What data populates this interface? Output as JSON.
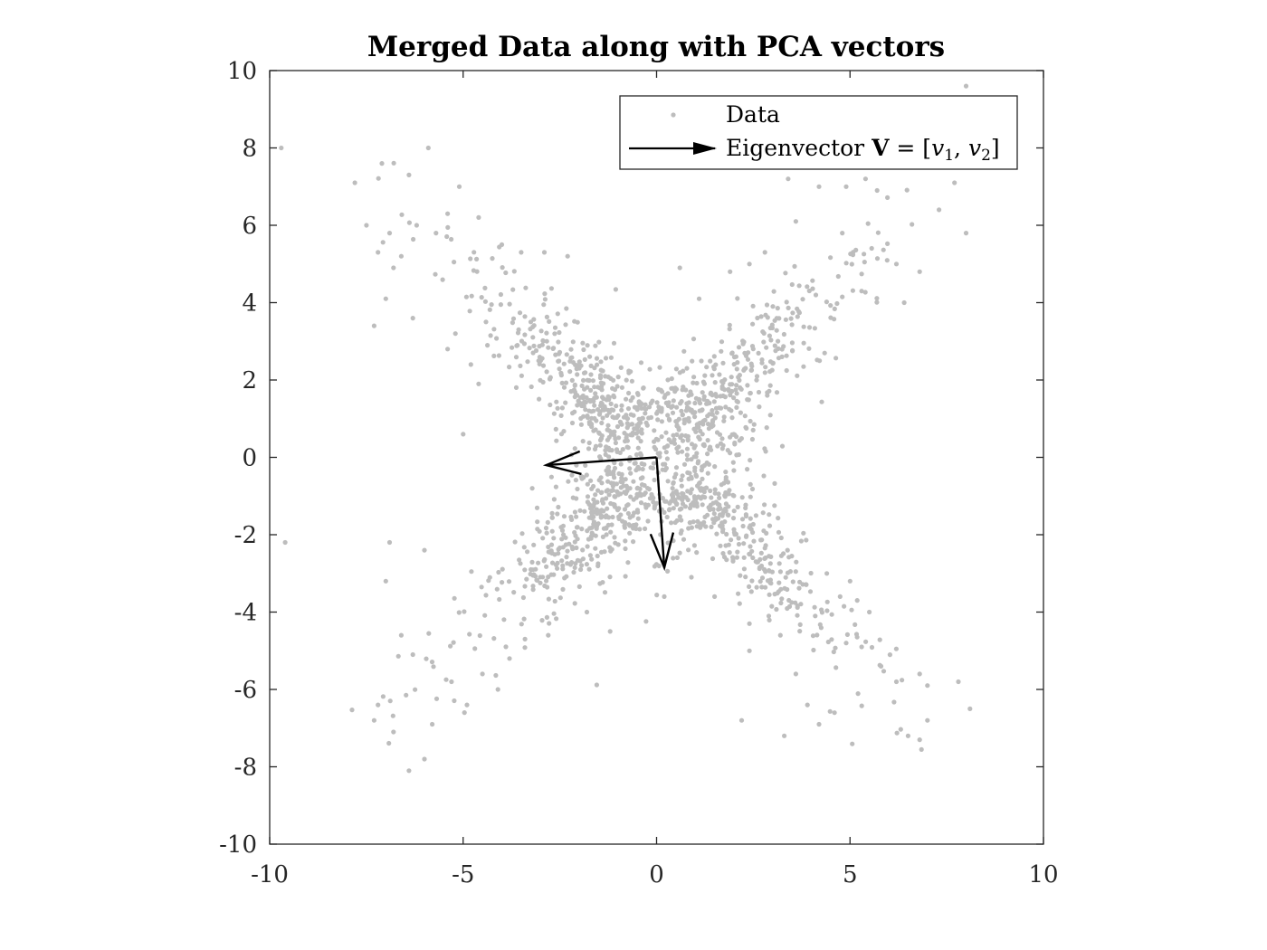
{
  "chart_data": {
    "type": "scatter",
    "title": "Merged Data along with PCA vectors",
    "xlabel": "",
    "ylabel": "",
    "xlim": [
      -10,
      10
    ],
    "ylim": [
      -10,
      10
    ],
    "xticks": [
      -10,
      -5,
      0,
      5,
      10
    ],
    "yticks": [
      -10,
      -8,
      -6,
      -4,
      -2,
      0,
      2,
      4,
      6,
      8,
      10
    ],
    "xtick_labels": [
      "-10",
      "-5",
      "0",
      "5",
      "10"
    ],
    "ytick_labels": [
      "-10",
      "-8",
      "-6",
      "-4",
      "-2",
      "0",
      "2",
      "4",
      "6",
      "8",
      "10"
    ],
    "grid": false,
    "legend_position": "top-right",
    "legend": {
      "data_label": "Data",
      "vector_label_prefix": "Eigenvector ",
      "vector_label_bold": "V",
      "vector_label_eq": " = [",
      "vector_label_v1": "v",
      "vector_label_sub1": "1",
      "vector_label_sep": ", ",
      "vector_label_v2": "v",
      "vector_label_sub2": "2",
      "vector_label_close": "]"
    },
    "colors": {
      "points": "#bdbdbd",
      "vectors": "#000000",
      "axes": "#262626"
    },
    "eigenvectors": [
      {
        "origin": [
          0,
          0
        ],
        "end": [
          -2.85,
          -0.2
        ]
      },
      {
        "origin": [
          0,
          0
        ],
        "end": [
          0.2,
          -2.85
        ]
      }
    ],
    "scatter_points": [
      [
        -9.7,
        8.0
      ],
      [
        -7.8,
        7.1
      ],
      [
        -7.1,
        7.6
      ],
      [
        -6.4,
        7.3
      ],
      [
        -5.9,
        8.0
      ],
      [
        -5.1,
        7.0
      ],
      [
        -7.5,
        6.0
      ],
      [
        -6.2,
        6.0
      ],
      [
        -5.7,
        5.8
      ],
      [
        -5.4,
        6.3
      ],
      [
        -4.6,
        6.2
      ],
      [
        -4.0,
        5.5
      ],
      [
        -3.5,
        5.3
      ],
      [
        -2.9,
        5.3
      ],
      [
        -2.3,
        5.2
      ],
      [
        -6.9,
        5.8
      ],
      [
        -7.2,
        5.3
      ],
      [
        -6.6,
        5.2
      ],
      [
        -7.0,
        4.1
      ],
      [
        -6.8,
        4.9
      ],
      [
        -6.3,
        3.6
      ],
      [
        -7.3,
        3.4
      ],
      [
        -5.4,
        2.8
      ],
      [
        -5.2,
        3.2
      ],
      [
        -4.8,
        2.4
      ],
      [
        -4.6,
        1.9
      ],
      [
        -5.0,
        0.6
      ],
      [
        8.0,
        9.6
      ],
      [
        8.0,
        5.8
      ],
      [
        7.7,
        7.1
      ],
      [
        7.3,
        6.4
      ],
      [
        6.8,
        4.8
      ],
      [
        6.2,
        5.0
      ],
      [
        5.7,
        6.9
      ],
      [
        5.4,
        7.2
      ],
      [
        4.9,
        7.0
      ],
      [
        4.2,
        7.0
      ],
      [
        3.4,
        7.2
      ],
      [
        3.6,
        6.1
      ],
      [
        2.8,
        5.3
      ],
      [
        2.4,
        5.0
      ],
      [
        1.9,
        4.8
      ],
      [
        0.6,
        4.9
      ],
      [
        4.8,
        5.8
      ],
      [
        5.3,
        4.3
      ],
      [
        6.4,
        4.0
      ],
      [
        1.1,
        4.1
      ],
      [
        -9.6,
        -2.2
      ],
      [
        -7.2,
        -6.4
      ],
      [
        -7.3,
        -6.8
      ],
      [
        -6.8,
        -7.1
      ],
      [
        -6.4,
        -8.1
      ],
      [
        -6.0,
        -7.8
      ],
      [
        -6.9,
        -2.2
      ],
      [
        -7.0,
        -3.2
      ],
      [
        -6.0,
        -2.4
      ],
      [
        -6.3,
        -5.1
      ],
      [
        -6.6,
        -4.6
      ],
      [
        -5.8,
        -6.9
      ],
      [
        -5.3,
        -5.8
      ],
      [
        -4.9,
        -6.4
      ],
      [
        -4.5,
        -5.6
      ],
      [
        -4.1,
        -6.0
      ],
      [
        -3.8,
        -5.2
      ],
      [
        -3.4,
        -4.7
      ],
      [
        -2.8,
        -4.6
      ],
      [
        -1.8,
        -4.0
      ],
      [
        -1.2,
        -4.5
      ],
      [
        8.1,
        -6.5
      ],
      [
        7.8,
        -5.8
      ],
      [
        7.0,
        -6.8
      ],
      [
        7.0,
        -5.9
      ],
      [
        6.8,
        -7.3
      ],
      [
        6.5,
        -7.2
      ],
      [
        6.8,
        -5.6
      ],
      [
        6.2,
        -5.8
      ],
      [
        5.8,
        -5.4
      ],
      [
        5.3,
        -4.9
      ],
      [
        4.9,
        -4.8
      ],
      [
        4.6,
        -6.6
      ],
      [
        4.2,
        -6.9
      ],
      [
        3.9,
        -6.4
      ],
      [
        3.6,
        -5.6
      ],
      [
        3.2,
        -4.6
      ],
      [
        2.9,
        -4.1
      ],
      [
        2.4,
        -5.0
      ],
      [
        2.2,
        -6.8
      ],
      [
        3.3,
        -7.2
      ],
      [
        2.4,
        -4.3
      ],
      [
        5.0,
        -3.2
      ],
      [
        4.4,
        -3.0
      ],
      [
        5.5,
        -4.0
      ],
      [
        1.5,
        -3.6
      ],
      [
        0.9,
        -3.1
      ],
      [
        0.2,
        -3.6
      ]
    ]
  }
}
